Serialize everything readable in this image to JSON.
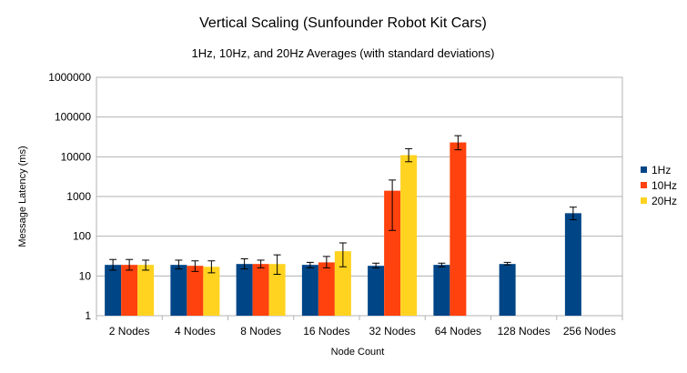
{
  "chart_data": {
    "type": "bar",
    "title": "Vertical Scaling (Sunfounder Robot Kit Cars)",
    "subtitle": "1Hz, 10Hz, and 20Hz Averages (with standard deviations)",
    "xlabel": "Node Count",
    "ylabel": "Message Latency (ms)",
    "y_scale": "log",
    "ylim": [
      1,
      1000000
    ],
    "y_ticks": [
      "1",
      "10",
      "100",
      "1000",
      "10000",
      "100000",
      "1000000"
    ],
    "grid": true,
    "legend_position": "right",
    "categories": [
      "2 Nodes",
      "4 Nodes",
      "8 Nodes",
      "16 Nodes",
      "32 Nodes",
      "64 Nodes",
      "128 Nodes",
      "256 Nodes"
    ],
    "series": [
      {
        "name": "1Hz",
        "color": "#004586",
        "values": [
          19,
          19,
          20,
          19,
          18,
          19,
          20,
          380
        ],
        "err_low": [
          14,
          15,
          15,
          16,
          16,
          17,
          19,
          260
        ],
        "err_high": [
          26,
          25,
          27,
          22,
          21,
          21,
          22,
          540
        ]
      },
      {
        "name": "10Hz",
        "color": "#ff420e",
        "values": [
          19,
          18,
          20,
          22,
          1400,
          23000,
          null,
          null
        ],
        "err_low": [
          14,
          13,
          16,
          16,
          140,
          15000,
          null,
          null
        ],
        "err_high": [
          26,
          24,
          25,
          31,
          2600,
          34000,
          null,
          null
        ]
      },
      {
        "name": "20Hz",
        "color": "#ffd320",
        "values": [
          19,
          17,
          20,
          42,
          11000,
          null,
          null,
          null
        ],
        "err_low": [
          14,
          12,
          11,
          17,
          7500,
          null,
          null,
          null
        ],
        "err_high": [
          25,
          24,
          34,
          68,
          16000,
          null,
          null,
          null
        ]
      }
    ]
  }
}
